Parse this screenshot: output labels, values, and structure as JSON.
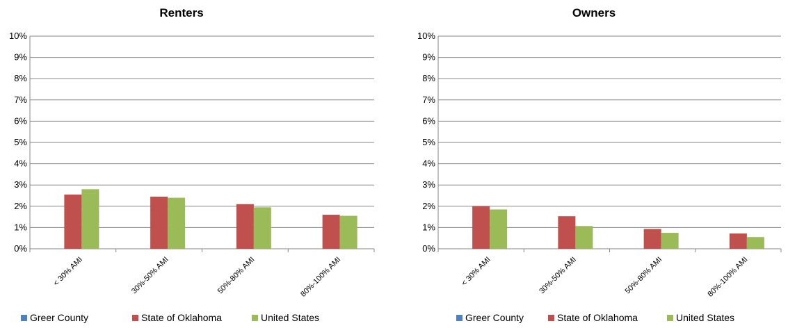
{
  "chart_data": [
    {
      "type": "bar",
      "title": "Renters",
      "categories": [
        "< 30% AMI",
        "30%-50% AMI",
        "50%-80% AMI",
        "80%-100% AMI"
      ],
      "yticks": [
        "0%",
        "1%",
        "2%",
        "3%",
        "4%",
        "5%",
        "6%",
        "7%",
        "8%",
        "9%",
        "10%"
      ],
      "ylim": [
        0,
        10
      ],
      "grid": true,
      "legend_position": "bottom",
      "series": [
        {
          "name": "Greer County",
          "color": "#4F81BD",
          "values": [
            0,
            0,
            0,
            0
          ]
        },
        {
          "name": "State of Oklahoma",
          "color": "#C0504D",
          "values": [
            2.55,
            2.45,
            2.1,
            1.6
          ]
        },
        {
          "name": "United States",
          "color": "#9BBB59",
          "values": [
            2.8,
            2.4,
            1.95,
            1.55
          ]
        }
      ]
    },
    {
      "type": "bar",
      "title": "Owners",
      "categories": [
        "< 30% AMI",
        "30%-50% AMI",
        "50%-80% AMI",
        "80%-100% AMI"
      ],
      "yticks": [
        "0%",
        "1%",
        "2%",
        "3%",
        "4%",
        "5%",
        "6%",
        "7%",
        "8%",
        "9%",
        "10%"
      ],
      "ylim": [
        0,
        10
      ],
      "grid": true,
      "legend_position": "bottom",
      "series": [
        {
          "name": "Greer County",
          "color": "#4F81BD",
          "values": [
            0,
            0,
            0,
            0
          ]
        },
        {
          "name": "State of Oklahoma",
          "color": "#C0504D",
          "values": [
            2.0,
            1.53,
            0.93,
            0.72
          ]
        },
        {
          "name": "United States",
          "color": "#9BBB59",
          "values": [
            1.85,
            1.07,
            0.75,
            0.55
          ]
        }
      ]
    }
  ]
}
